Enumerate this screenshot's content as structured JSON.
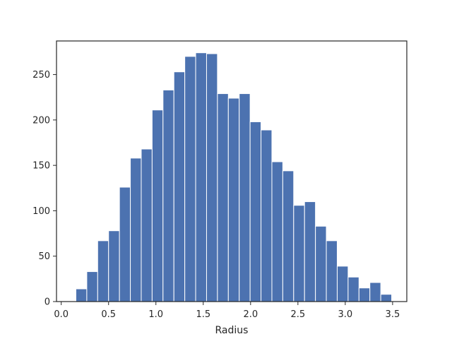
{
  "chart_data": {
    "type": "bar",
    "subtype": "histogram",
    "xlabel": "Radius",
    "ylabel": "",
    "title": "",
    "xlim": [
      -0.05,
      3.65
    ],
    "ylim": [
      0,
      287
    ],
    "xticks": [
      0.0,
      0.5,
      1.0,
      1.5,
      2.0,
      2.5,
      3.0,
      3.5
    ],
    "xtick_labels": [
      "0.0",
      "0.5",
      "1.0",
      "1.5",
      "2.0",
      "2.5",
      "3.0",
      "3.5"
    ],
    "yticks": [
      0,
      50,
      100,
      150,
      200,
      250
    ],
    "ytick_labels": [
      "0",
      "50",
      "100",
      "150",
      "200",
      "250"
    ],
    "bin_edges": [
      0.155,
      0.27,
      0.385,
      0.5,
      0.615,
      0.73,
      0.845,
      0.96,
      1.075,
      1.19,
      1.305,
      1.42,
      1.535,
      1.65,
      1.765,
      1.88,
      1.995,
      2.11,
      2.225,
      2.34,
      2.455,
      2.57,
      2.685,
      2.8,
      2.915,
      3.03,
      3.145,
      3.26,
      3.375,
      3.49
    ],
    "values": [
      14,
      33,
      67,
      78,
      126,
      158,
      168,
      211,
      233,
      253,
      270,
      274,
      273,
      229,
      224,
      229,
      198,
      189,
      154,
      144,
      106,
      110,
      83,
      67,
      39,
      27,
      15,
      21,
      8
    ],
    "grid": false,
    "legend": "none",
    "bar_color": "#4c72b0",
    "edge_color": "#ffffff"
  }
}
